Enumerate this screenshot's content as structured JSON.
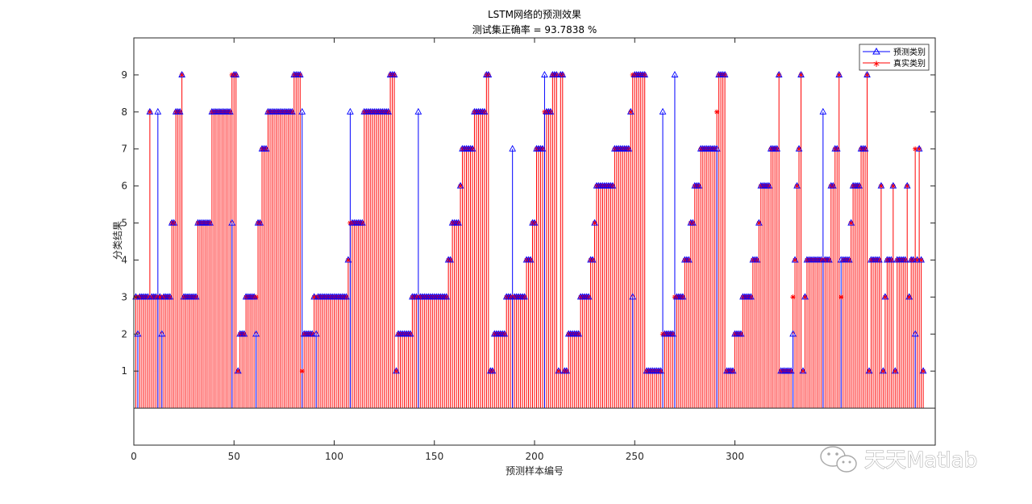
{
  "chart_data": {
    "type": "stem",
    "title": "LSTM网络的预测效果",
    "subtitle": "测试集正确率 = 93.7838 %",
    "xlabel": "预测样本编号",
    "ylabel": "分类结果",
    "xlim": [
      0,
      400
    ],
    "ylim": [
      -1,
      10
    ],
    "xticks": [
      0,
      50,
      100,
      150,
      200,
      250,
      300
    ],
    "yticks": [
      1,
      2,
      3,
      4,
      5,
      6,
      7,
      8,
      9
    ],
    "legend_position": "top-right",
    "series": [
      {
        "name": "预测类别",
        "color": "#0000ff",
        "marker": "triangle",
        "values": [
          3,
          2,
          3,
          3,
          3,
          3,
          3,
          8,
          3,
          3,
          3,
          8,
          3,
          2,
          3,
          3,
          3,
          3,
          5,
          5,
          8,
          8,
          8,
          9,
          3,
          3,
          3,
          3,
          3,
          3,
          3,
          5,
          5,
          5,
          5,
          5,
          5,
          5,
          8,
          8,
          8,
          8,
          8,
          8,
          8,
          8,
          8,
          8,
          5,
          9,
          9,
          1,
          2,
          2,
          2,
          3,
          3,
          3,
          3,
          3,
          2,
          5,
          5,
          7,
          7,
          7,
          8,
          8,
          8,
          8,
          8,
          8,
          8,
          8,
          8,
          8,
          8,
          8,
          8,
          9,
          9,
          9,
          9,
          8,
          2,
          2,
          2,
          2,
          2,
          3,
          2,
          3,
          3,
          3,
          3,
          3,
          3,
          3,
          3,
          3,
          3,
          3,
          3,
          3,
          3,
          3,
          4,
          8,
          5,
          5,
          5,
          5,
          5,
          5,
          8,
          8,
          8,
          8,
          8,
          8,
          8,
          8,
          8,
          8,
          8,
          8,
          8,
          9,
          9,
          9,
          1,
          2,
          2,
          2,
          2,
          2,
          2,
          2,
          3,
          3,
          3,
          8,
          3,
          3,
          3,
          3,
          3,
          3,
          3,
          3,
          3,
          3,
          3,
          3,
          3,
          3,
          4,
          4,
          5,
          5,
          5,
          5,
          6,
          7,
          7,
          7,
          7,
          7,
          7,
          8,
          8,
          8,
          8,
          8,
          8,
          9,
          9,
          1,
          1,
          2,
          2,
          2,
          2,
          2,
          2,
          3,
          3,
          3,
          7,
          3,
          3,
          3,
          3,
          3,
          3,
          4,
          4,
          4,
          5,
          5,
          7,
          7,
          7,
          7,
          9,
          8,
          8,
          8,
          9,
          9,
          9,
          1,
          9,
          9,
          1,
          1,
          2,
          2,
          2,
          2,
          2,
          2,
          3,
          3,
          3,
          3,
          3,
          4,
          4,
          5,
          6,
          6,
          6,
          6,
          6,
          6,
          6,
          6,
          6,
          7,
          7,
          7,
          7,
          7,
          7,
          7,
          7,
          8,
          3,
          9,
          9,
          9,
          9,
          9,
          9,
          1,
          1,
          1,
          1,
          1,
          1,
          1,
          1,
          8,
          2,
          2,
          2,
          2,
          2,
          9,
          3,
          3,
          3,
          3,
          4,
          4,
          4,
          5,
          5,
          6,
          6,
          6,
          7,
          7,
          7,
          7,
          7,
          7,
          7,
          7,
          7,
          9,
          9,
          9,
          9,
          1,
          1,
          1,
          1,
          2,
          2,
          2,
          2,
          3,
          3,
          3,
          3,
          3,
          4,
          4,
          4,
          5,
          6,
          6,
          6,
          6,
          6,
          7,
          7,
          7,
          7,
          9,
          1,
          1,
          1,
          1,
          1,
          1,
          2,
          4,
          6,
          7,
          9,
          1,
          3,
          4,
          4,
          4,
          4,
          4,
          4,
          4,
          4,
          8,
          4,
          4,
          4,
          6,
          6,
          7,
          7,
          9,
          4,
          4,
          4,
          4,
          4,
          5,
          6,
          6,
          6,
          6,
          7,
          7,
          7,
          9,
          1,
          4,
          4,
          4,
          4,
          4,
          6,
          1,
          3,
          4,
          4,
          4,
          6,
          1,
          4,
          4,
          4,
          4,
          4,
          6,
          3,
          4,
          4,
          2,
          4,
          7,
          4,
          1
        ]
      },
      {
        "name": "真实类别",
        "color": "#ff0000",
        "marker": "asterisk",
        "values": [
          3,
          3,
          3,
          3,
          3,
          3,
          3,
          8,
          3,
          3,
          3,
          3,
          3,
          3,
          3,
          3,
          3,
          3,
          5,
          5,
          8,
          8,
          8,
          9,
          3,
          3,
          3,
          3,
          3,
          3,
          3,
          5,
          5,
          5,
          5,
          5,
          5,
          5,
          8,
          8,
          8,
          8,
          8,
          8,
          8,
          8,
          8,
          8,
          9,
          9,
          9,
          1,
          2,
          2,
          2,
          3,
          3,
          3,
          3,
          3,
          3,
          5,
          5,
          7,
          7,
          7,
          8,
          8,
          8,
          8,
          8,
          8,
          8,
          8,
          8,
          8,
          8,
          8,
          8,
          9,
          9,
          9,
          9,
          1,
          2,
          2,
          2,
          2,
          2,
          3,
          3,
          3,
          3,
          3,
          3,
          3,
          3,
          3,
          3,
          3,
          3,
          3,
          3,
          3,
          3,
          3,
          4,
          5,
          5,
          5,
          5,
          5,
          5,
          5,
          8,
          8,
          8,
          8,
          8,
          8,
          8,
          8,
          8,
          8,
          8,
          8,
          8,
          9,
          9,
          9,
          1,
          2,
          2,
          2,
          2,
          2,
          2,
          2,
          3,
          3,
          3,
          3,
          3,
          3,
          3,
          3,
          3,
          3,
          3,
          3,
          3,
          3,
          3,
          3,
          3,
          3,
          4,
          4,
          5,
          5,
          5,
          5,
          6,
          7,
          7,
          7,
          7,
          7,
          7,
          8,
          8,
          8,
          8,
          8,
          8,
          9,
          9,
          1,
          1,
          2,
          2,
          2,
          2,
          2,
          2,
          3,
          3,
          3,
          3,
          3,
          3,
          3,
          3,
          3,
          3,
          4,
          4,
          4,
          5,
          5,
          7,
          7,
          7,
          7,
          8,
          8,
          8,
          8,
          9,
          9,
          9,
          1,
          9,
          9,
          1,
          1,
          2,
          2,
          2,
          2,
          2,
          2,
          3,
          3,
          3,
          3,
          3,
          4,
          4,
          5,
          6,
          6,
          6,
          6,
          6,
          6,
          6,
          6,
          6,
          7,
          7,
          7,
          7,
          7,
          7,
          7,
          7,
          8,
          9,
          9,
          9,
          9,
          9,
          9,
          9,
          1,
          1,
          1,
          1,
          1,
          1,
          1,
          1,
          2,
          2,
          2,
          2,
          2,
          2,
          3,
          3,
          3,
          3,
          3,
          4,
          4,
          4,
          5,
          5,
          6,
          6,
          6,
          7,
          7,
          7,
          7,
          7,
          7,
          7,
          7,
          8,
          9,
          9,
          9,
          9,
          1,
          1,
          1,
          1,
          2,
          2,
          2,
          2,
          3,
          3,
          3,
          3,
          3,
          4,
          4,
          4,
          5,
          6,
          6,
          6,
          6,
          6,
          7,
          7,
          7,
          7,
          9,
          1,
          1,
          1,
          1,
          1,
          1,
          3,
          4,
          6,
          7,
          9,
          1,
          3,
          4,
          4,
          4,
          4,
          4,
          4,
          4,
          4,
          4,
          4,
          4,
          4,
          6,
          6,
          7,
          7,
          9,
          3,
          4,
          4,
          4,
          4,
          5,
          6,
          6,
          6,
          6,
          7,
          7,
          7,
          9,
          1,
          4,
          4,
          4,
          4,
          4,
          6,
          1,
          3,
          4,
          4,
          4,
          6,
          1,
          4,
          4,
          4,
          4,
          4,
          6,
          3,
          4,
          4,
          7,
          4,
          7,
          4,
          1
        ]
      }
    ]
  },
  "watermark": {
    "text": "天天Matlab",
    "icon": "wechat-icon"
  }
}
